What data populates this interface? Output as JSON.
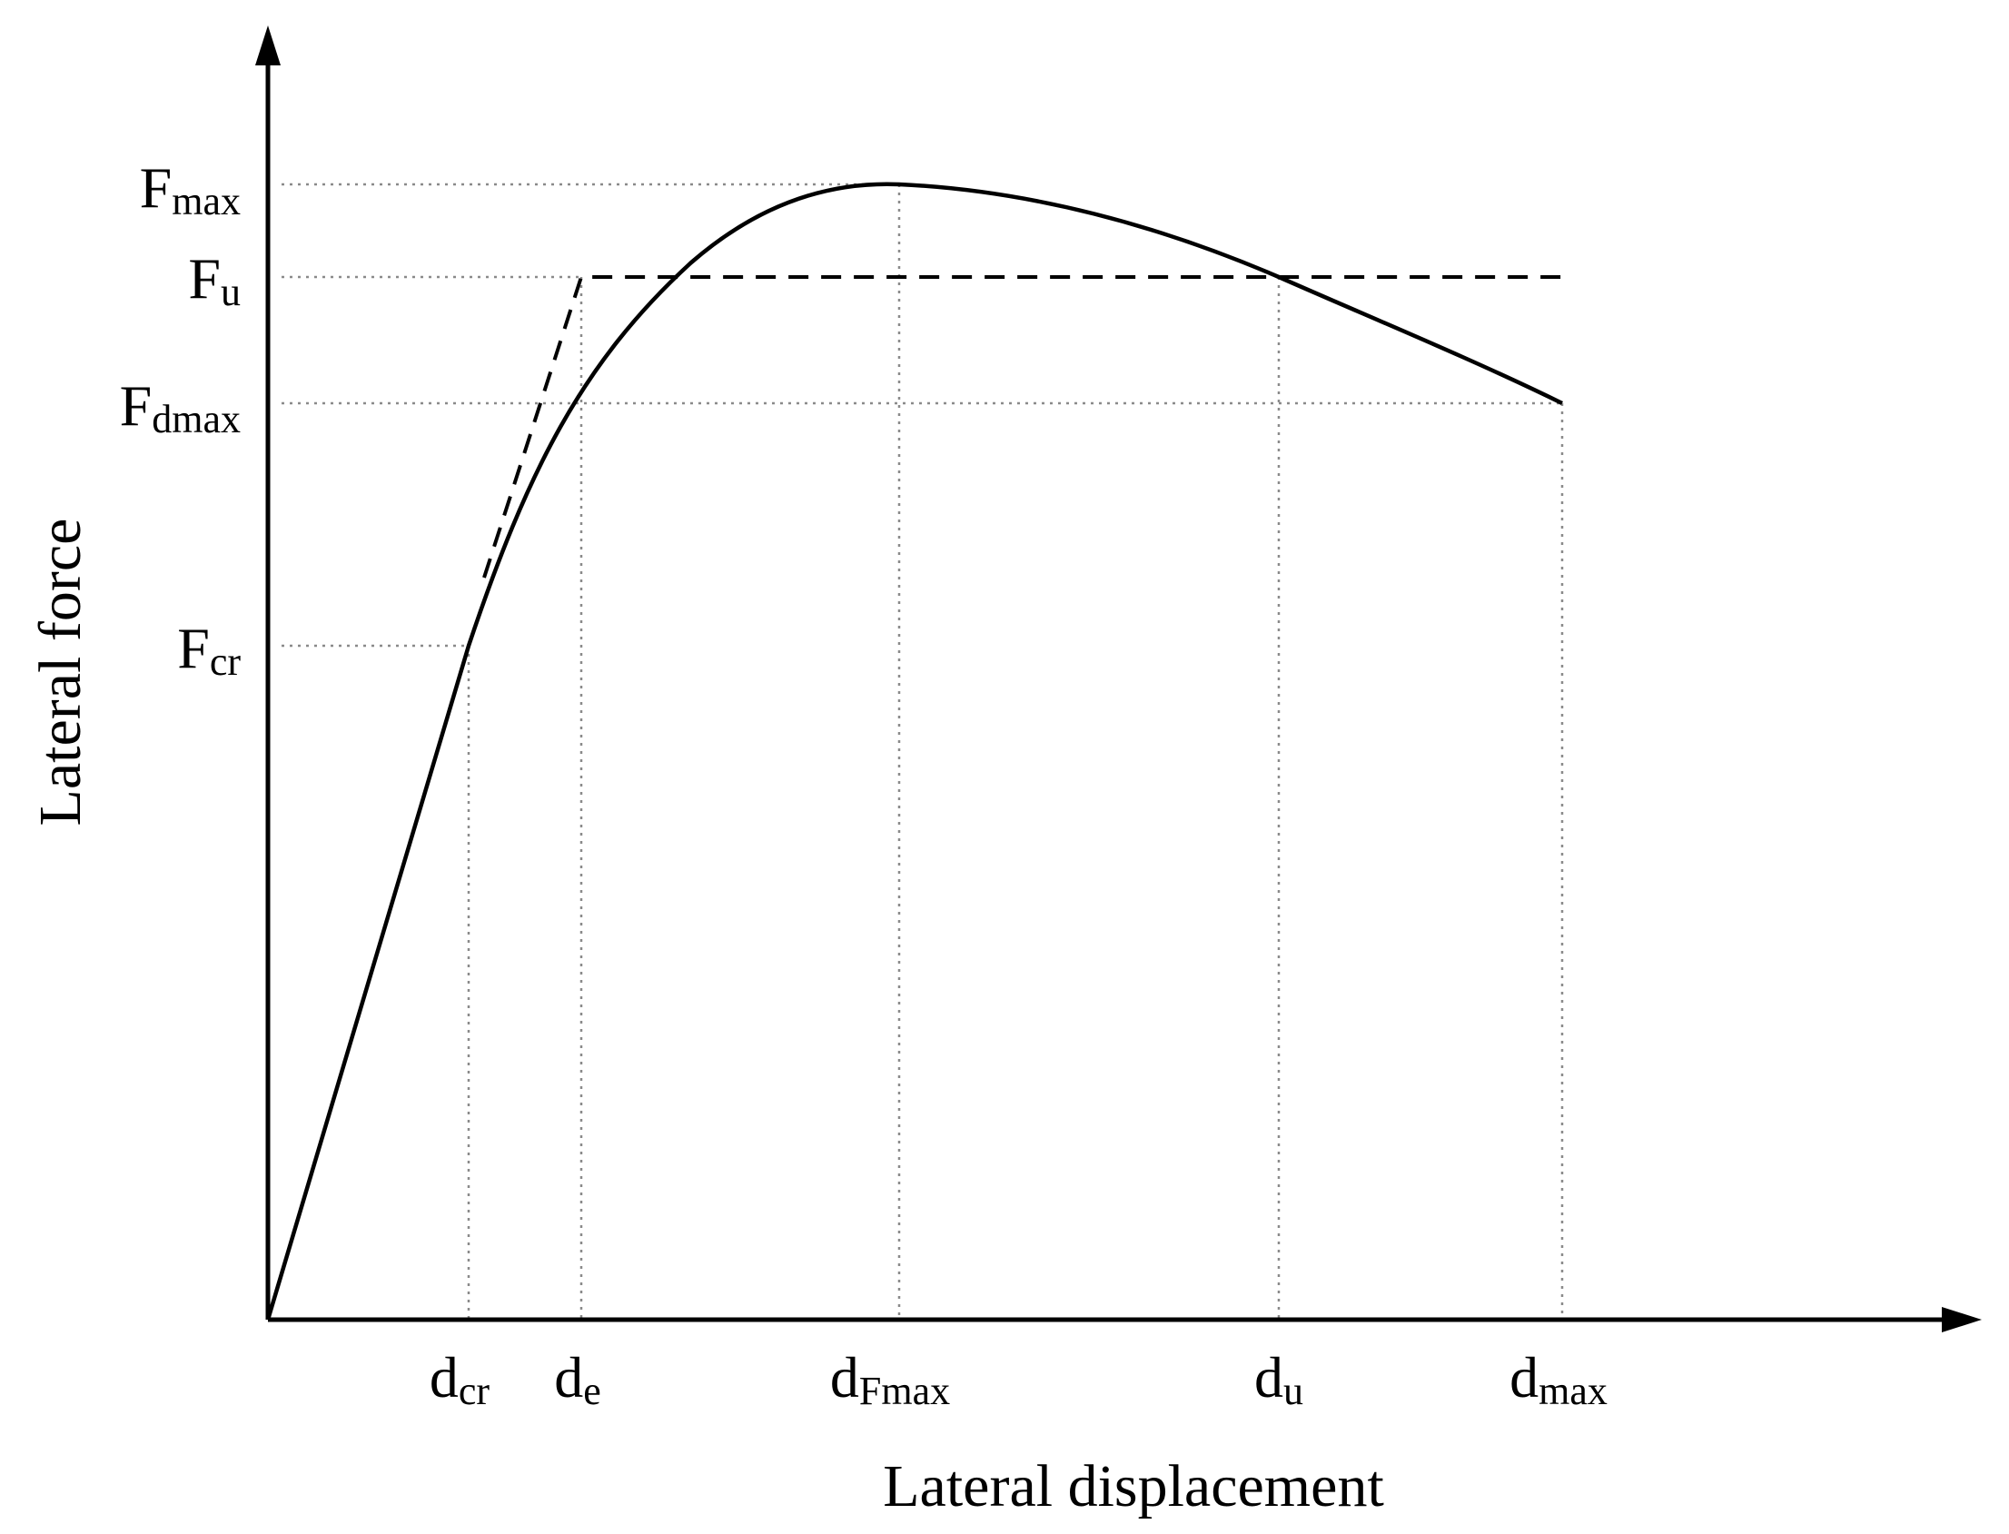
{
  "diagram": {
    "x_axis_title": "Lateral displacement",
    "y_axis_title": "Lateral force",
    "y_labels": {
      "f_max": {
        "base": "F",
        "sub": "max"
      },
      "f_u": {
        "base": "F",
        "sub": "u"
      },
      "f_dmax": {
        "base": "F",
        "sub": "dmax"
      },
      "f_cr": {
        "base": "F",
        "sub": "cr"
      }
    },
    "x_labels": {
      "d_cr": {
        "base": "d",
        "sub": "cr"
      },
      "d_e": {
        "base": "d",
        "sub": "e"
      },
      "d_fmax": {
        "base": "d",
        "sub": "Fmax"
      },
      "d_u": {
        "base": "d",
        "sub": "u"
      },
      "d_max": {
        "base": "d",
        "sub": "max"
      }
    },
    "colors": {
      "ink": "#000000",
      "guide": "#8a8a8a"
    }
  }
}
